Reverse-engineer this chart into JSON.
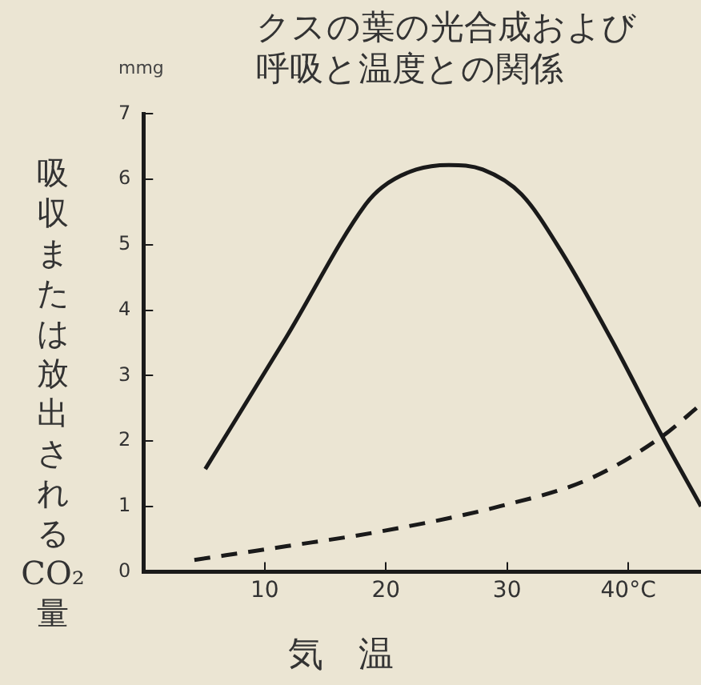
{
  "chart_data": {
    "type": "line",
    "title": "クスの葉の光合成および呼吸と温度との関係",
    "xlabel": "気　温",
    "ylabel": "吸収または放出されるCO₂量",
    "annotations": [
      "mmg"
    ],
    "xlim": [
      0,
      46
    ],
    "xticks": [
      10,
      20,
      30,
      {
        "value": 40,
        "label": "40°C"
      }
    ],
    "ylim": [
      0,
      7
    ],
    "yticks": [
      0,
      1,
      2,
      3,
      4,
      5,
      6,
      7
    ],
    "grid": false,
    "legend": false,
    "marker": "none",
    "series": [
      {
        "color": "#1a1a1a",
        "line_style": "solid",
        "x": [
          5.1,
          11.8,
          18.3,
          19.7,
          22.5,
          25.2,
          28.0,
          31.2,
          34.5,
          38.7,
          42.8,
          46
        ],
        "values": [
          1.57,
          3.59,
          5.61,
          5.88,
          6.15,
          6.22,
          6.15,
          5.77,
          4.89,
          3.52,
          2.07,
          1.0
        ]
      },
      {
        "color": "#1a1a1a",
        "line_style": "dashed",
        "x": [
          4.2,
          11.8,
          19.7,
          29.4,
          36.8,
          42.8,
          46
        ],
        "values": [
          0.18,
          0.39,
          0.62,
          1.0,
          1.42,
          2.07,
          2.56
        ]
      }
    ]
  }
}
